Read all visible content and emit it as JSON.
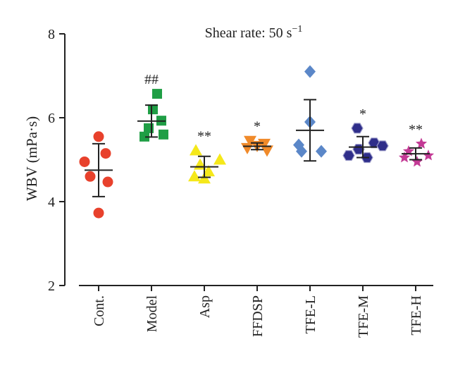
{
  "chart_data": {
    "type": "scatter",
    "title": "Shear rate: 50 s",
    "title_superscript": "−1",
    "ylabel": "WBV (mPa·s)",
    "ylim": [
      2,
      8
    ],
    "yticks": [
      2,
      4,
      6,
      8
    ],
    "grid": false,
    "legend": "none",
    "categories": [
      "Cont.",
      "Model",
      "Asp",
      "FFDSP",
      "TFE-L",
      "TFE-M",
      "TFE-H"
    ],
    "series": [
      {
        "category": "Cont.",
        "marker": "circle",
        "color": "#e8412c",
        "values": [
          5.55,
          4.95,
          5.15,
          4.6,
          4.47,
          3.73
        ],
        "mean": 4.75,
        "sd": 0.63,
        "annotation": ""
      },
      {
        "category": "Model",
        "marker": "square",
        "color": "#1f9e45",
        "values": [
          6.57,
          6.2,
          5.93,
          5.75,
          5.6,
          5.55
        ],
        "mean": 5.92,
        "sd": 0.38,
        "annotation": "##"
      },
      {
        "category": "Asp",
        "marker": "triangle-up",
        "color": "#f5e81a",
        "values": [
          5.22,
          5.0,
          4.88,
          4.72,
          4.6,
          4.55
        ],
        "mean": 4.83,
        "sd": 0.25,
        "annotation": "**"
      },
      {
        "category": "FFDSP",
        "marker": "triangle-down",
        "color": "#f08a2a",
        "values": [
          5.45,
          5.38,
          5.33,
          5.28,
          5.22
        ],
        "mean": 5.32,
        "sd": 0.08,
        "annotation": "*"
      },
      {
        "category": "TFE-L",
        "marker": "diamond",
        "color": "#5b87c8",
        "values": [
          7.1,
          5.9,
          5.35,
          5.2,
          5.2
        ],
        "mean": 5.7,
        "sd": 0.73,
        "annotation": ""
      },
      {
        "category": "TFE-M",
        "marker": "hexagon",
        "color": "#2f2e8a",
        "values": [
          5.75,
          5.4,
          5.33,
          5.25,
          5.1,
          5.05
        ],
        "mean": 5.3,
        "sd": 0.25,
        "annotation": "*"
      },
      {
        "category": "TFE-H",
        "marker": "star",
        "color": "#c33a95",
        "values": [
          5.38,
          5.2,
          5.1,
          5.05,
          4.95
        ],
        "mean": 5.14,
        "sd": 0.14,
        "annotation": "**"
      }
    ]
  }
}
